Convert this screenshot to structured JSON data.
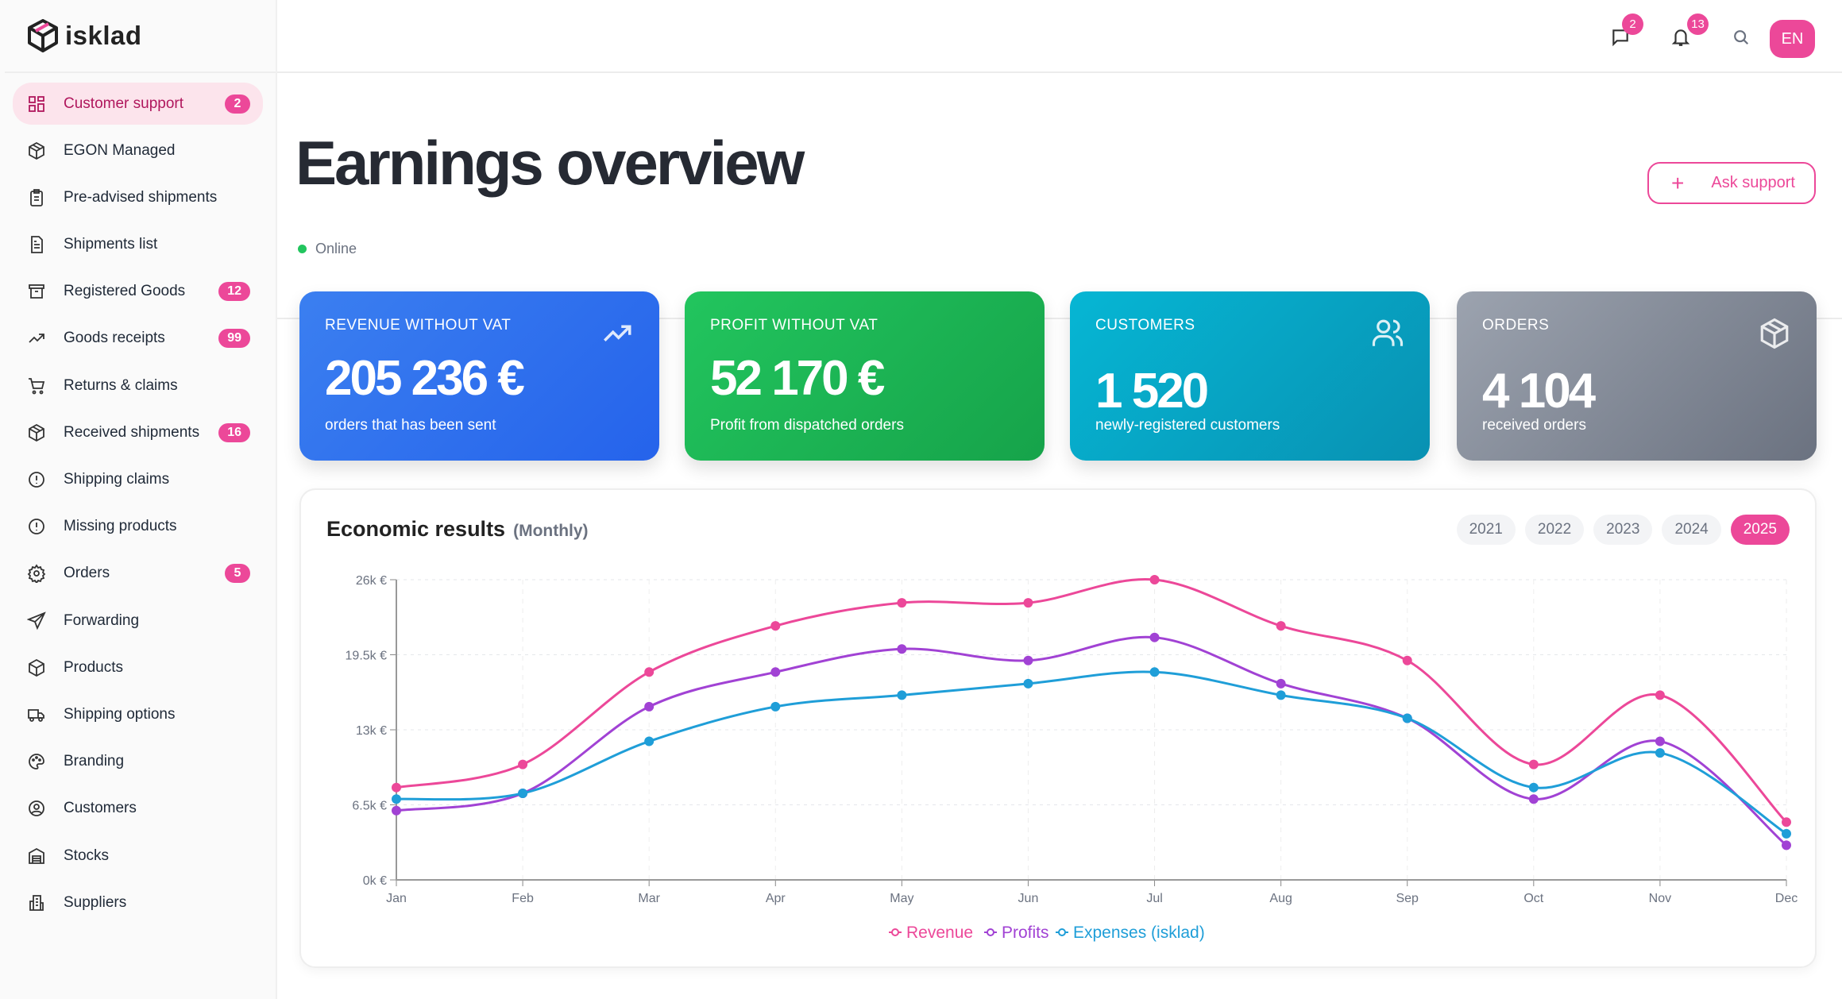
{
  "brand": {
    "name": "isklad"
  },
  "sidebar": {
    "items": [
      {
        "label": "Customer support",
        "icon": "grid-icon",
        "badge": "2",
        "active": true
      },
      {
        "label": "EGON Managed",
        "icon": "package-icon"
      },
      {
        "label": "Pre-advised shipments",
        "icon": "clipboard-list-icon"
      },
      {
        "label": "Shipments list",
        "icon": "document-icon"
      },
      {
        "label": "Registered Goods",
        "icon": "archive-icon",
        "badge": "12"
      },
      {
        "label": "Goods receipts",
        "icon": "trending-up-icon",
        "badge": "99"
      },
      {
        "label": "Returns & claims",
        "icon": "cart-icon"
      },
      {
        "label": "Received shipments",
        "icon": "package-icon",
        "badge": "16"
      },
      {
        "label": "Shipping claims",
        "icon": "alert-circle-icon"
      },
      {
        "label": "Missing products",
        "icon": "alert-circle-icon"
      },
      {
        "label": "Orders",
        "icon": "gear-icon",
        "badge": "5"
      },
      {
        "label": "Forwarding",
        "icon": "send-icon"
      },
      {
        "label": "Products",
        "icon": "cube-icon"
      },
      {
        "label": "Shipping options",
        "icon": "truck-icon"
      },
      {
        "label": "Branding",
        "icon": "palette-icon"
      },
      {
        "label": "Customers",
        "icon": "user-circle-icon"
      },
      {
        "label": "Stocks",
        "icon": "warehouse-icon"
      },
      {
        "label": "Suppliers",
        "icon": "building-icon"
      }
    ]
  },
  "topbar": {
    "messages_count": "2",
    "notifications_count": "13",
    "language": "EN"
  },
  "page": {
    "title": "Earnings overview",
    "status": "Online",
    "ask_support": "Ask support",
    "plus": "+"
  },
  "cards": [
    {
      "title": "REVENUE WITHOUT VAT",
      "value": "205 236 €",
      "subtitle": "orders that has been sent",
      "icon": "trending-up-icon"
    },
    {
      "title": "PROFIT WITHOUT VAT",
      "value": "52 170 €",
      "subtitle": "Profit from dispatched orders"
    },
    {
      "title": "CUSTOMERS",
      "value": "1 520",
      "subtitle": "newly-registered customers",
      "icon": "users-icon"
    },
    {
      "title": "ORDERS",
      "value": "4 104",
      "subtitle": "received orders",
      "icon": "box-icon"
    }
  ],
  "chart_panel": {
    "title": "Economic results",
    "period": "(Monthly)",
    "years": [
      "2021",
      "2022",
      "2023",
      "2024",
      "2025"
    ],
    "selected_year": "2025"
  },
  "chart_data": {
    "type": "line",
    "categories": [
      "Jan",
      "Feb",
      "Mar",
      "Apr",
      "May",
      "Jun",
      "Jul",
      "Aug",
      "Sep",
      "Oct",
      "Nov",
      "Dec"
    ],
    "yticks": [
      "0k €",
      "6.5k €",
      "13k €",
      "19.5k €",
      "26k €"
    ],
    "ylim": [
      0,
      26000
    ],
    "grid": true,
    "legend": "bottom",
    "series": [
      {
        "name": "Revenue",
        "color": "#ec4899",
        "values": [
          8000,
          10000,
          18000,
          22000,
          24000,
          24000,
          26000,
          22000,
          19000,
          10000,
          16000,
          5000
        ]
      },
      {
        "name": "Profits",
        "color": "#a142d4",
        "values": [
          6000,
          7500,
          15000,
          18000,
          20000,
          19000,
          21000,
          17000,
          14000,
          7000,
          12000,
          3000
        ]
      },
      {
        "name": "Expenses (isklad)",
        "color": "#1f9ed8",
        "values": [
          7000,
          7500,
          12000,
          15000,
          16000,
          17000,
          18000,
          16000,
          14000,
          8000,
          11000,
          4000
        ]
      }
    ]
  }
}
